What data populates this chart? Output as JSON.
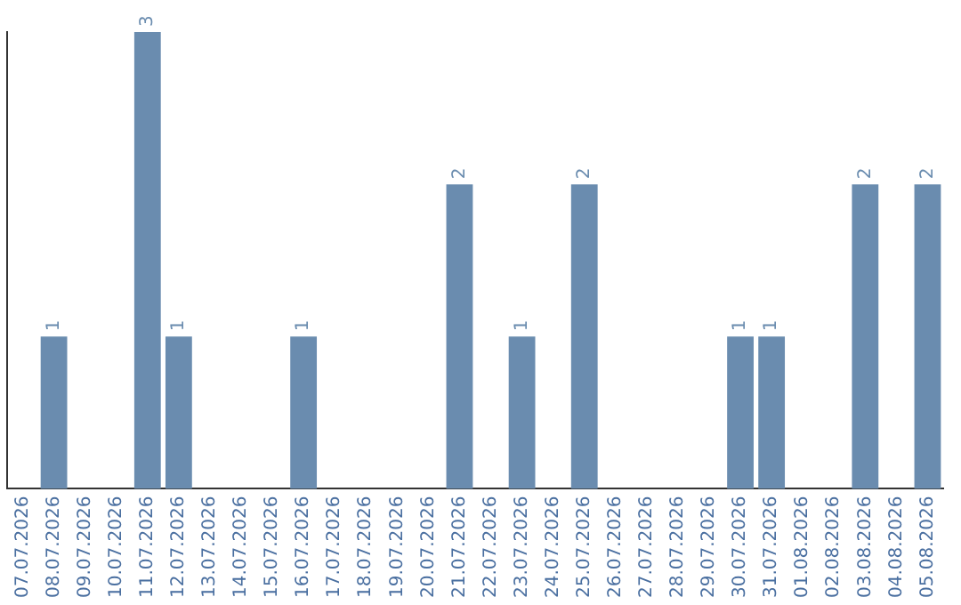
{
  "chart_data": {
    "type": "bar",
    "categories": [
      "07.07.2026",
      "08.07.2026",
      "09.07.2026",
      "10.07.2026",
      "11.07.2026",
      "12.07.2026",
      "13.07.2026",
      "14.07.2026",
      "15.07.2026",
      "16.07.2026",
      "17.07.2026",
      "18.07.2026",
      "19.07.2026",
      "20.07.2026",
      "21.07.2026",
      "22.07.2026",
      "23.07.2026",
      "24.07.2026",
      "25.07.2026",
      "26.07.2026",
      "27.07.2026",
      "28.07.2026",
      "29.07.2026",
      "30.07.2026",
      "31.07.2026",
      "01.08.2026",
      "02.08.2026",
      "03.08.2026",
      "04.08.2026",
      "05.08.2026"
    ],
    "values": [
      0,
      1,
      0,
      0,
      3,
      1,
      0,
      0,
      0,
      1,
      0,
      0,
      0,
      0,
      2,
      0,
      1,
      0,
      2,
      0,
      0,
      0,
      0,
      1,
      1,
      0,
      0,
      2,
      0,
      2
    ],
    "value_labels": [
      null,
      "1",
      null,
      null,
      "3",
      "1",
      null,
      null,
      null,
      "1",
      null,
      null,
      null,
      null,
      "2",
      null,
      "1",
      null,
      "2",
      null,
      null,
      null,
      null,
      "1",
      "1",
      null,
      null,
      "2",
      null,
      "2"
    ],
    "color": "#6a8caf",
    "ylim": [
      0,
      3
    ],
    "tick_labels": "x",
    "grid": false,
    "legend": false
  }
}
